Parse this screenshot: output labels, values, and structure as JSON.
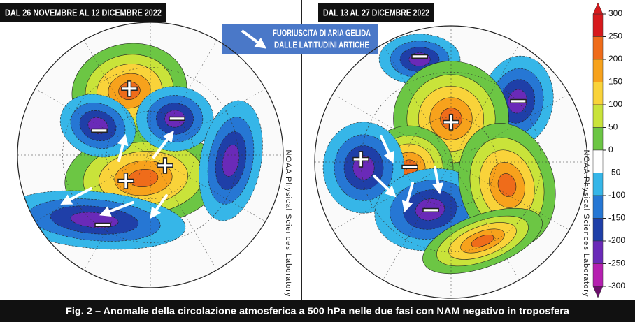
{
  "panels": [
    {
      "title": "DAL 26 NOVEMBRE AL 12 DICEMBRE 2022",
      "anomalies": [
        "+",
        "−",
        "−",
        "+",
        "+",
        "−"
      ],
      "credit": "NOAA Physical Sciences Laboratory"
    },
    {
      "title": "DAL 13 AL 27 DICEMBRE 2022",
      "anomalies": [
        "−",
        "−",
        "+",
        "−",
        "+",
        "−"
      ],
      "credit": "NOAA Physical Sciences Laboratory"
    }
  ],
  "annotation": {
    "lines": [
      "FUORIUSCITA DI ARIA GELIDA",
      "DALLE LATITUDINI ARTICHE"
    ]
  },
  "colorbar": {
    "lim": [
      -300,
      300
    ],
    "ticks": [
      300,
      250,
      200,
      150,
      100,
      50,
      0,
      -50,
      -100,
      -150,
      -200,
      -250,
      -300
    ],
    "colors": [
      "#d7191c",
      "#ef6c1a",
      "#f7a21c",
      "#f9d33a",
      "#c9e33a",
      "#6cc644",
      "#ffffff",
      "#36b6e8",
      "#2677d4",
      "#1f3fa8",
      "#6a2ab8",
      "#b51fb0",
      "#6b0f6b"
    ]
  },
  "caption": "Fig. 2 – Anomalie della circolazione atmosferica a 500 hPa nelle due fasi con NAM negativo in troposfera"
}
